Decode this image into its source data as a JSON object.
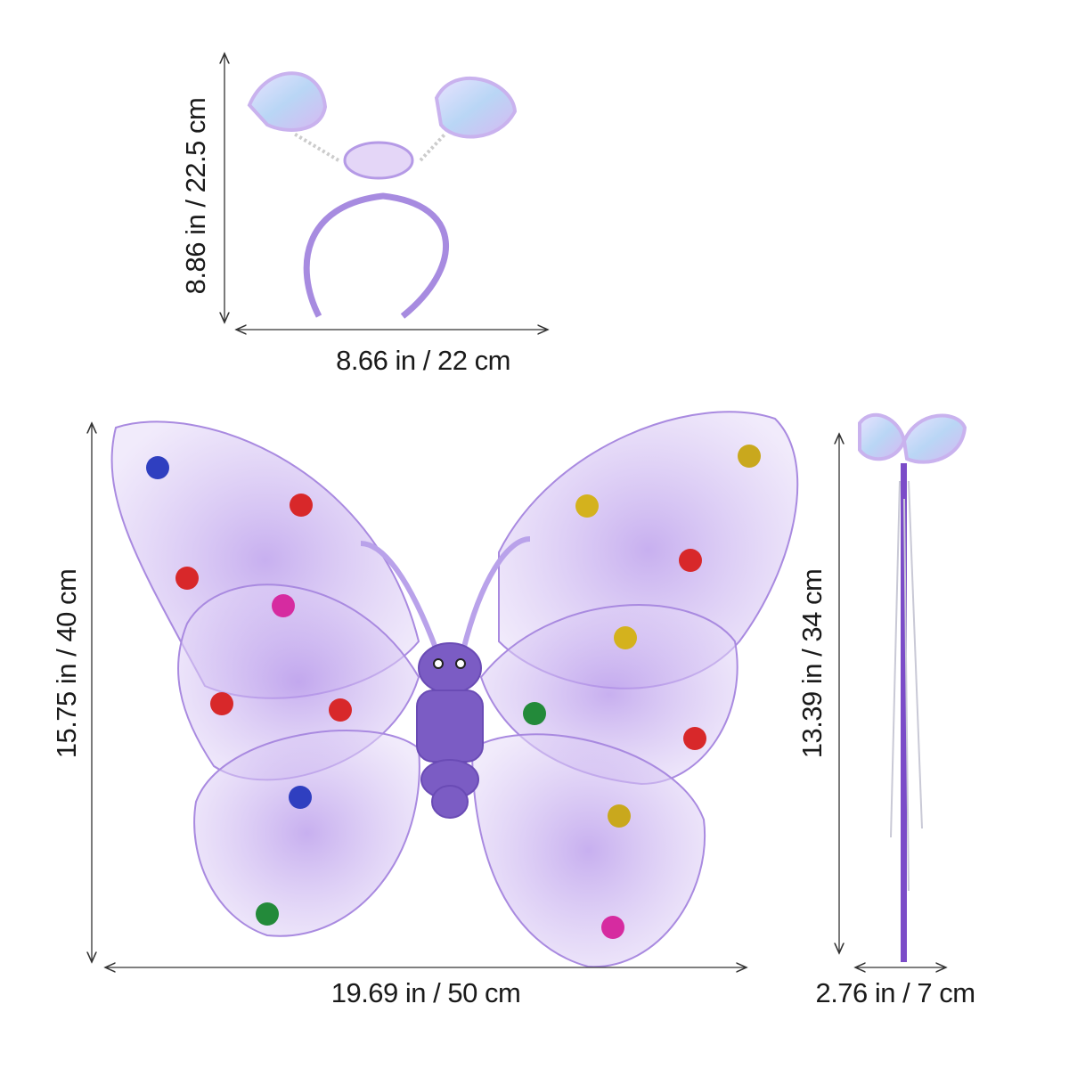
{
  "dimensions": {
    "headband_height": "8.86 in / 22.5 cm",
    "headband_width": "8.66 in / 22 cm",
    "wings_height": "15.75 in / 40 cm",
    "wings_width": "19.69 in / 50 cm",
    "wand_height": "13.39 in / 34 cm",
    "wand_width": "2.76 in / 7 cm"
  },
  "colors": {
    "wing": "#c9b3ee",
    "wing_edge": "#a98ae0",
    "body": "#7b5cc4",
    "arrow": "#333333"
  }
}
